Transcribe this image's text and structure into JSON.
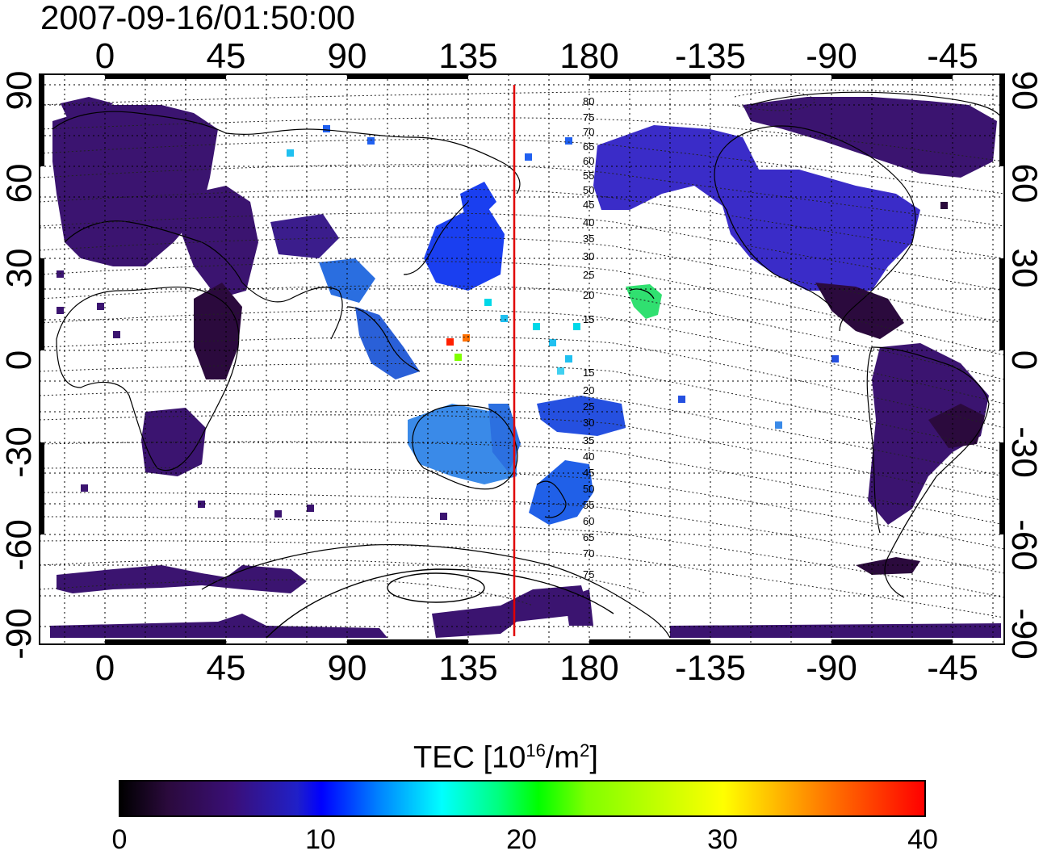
{
  "title": "2007-09-16/01:50:00",
  "axes": {
    "lon_labels": [
      "0",
      "45",
      "90",
      "135",
      "180",
      "-135",
      "-90",
      "-45"
    ],
    "lat_labels": [
      "90",
      "60",
      "30",
      "0",
      "-30",
      "-60",
      "-90"
    ]
  },
  "contour_labels": [
    "80",
    "75",
    "70",
    "65",
    "60",
    "55",
    "50",
    "45",
    "40",
    "35",
    "30",
    "25",
    "20",
    "15",
    "15",
    "20",
    "25",
    "30",
    "35",
    "40",
    "45",
    "50",
    "55",
    "60",
    "65",
    "70",
    "75"
  ],
  "colorbar": {
    "label_main": "TEC  [10",
    "label_sup1": "16",
    "label_mid": "/m",
    "label_sup2": "2",
    "label_end": "]",
    "ticks": [
      "0",
      "10",
      "20",
      "30",
      "40"
    ],
    "range": [
      0,
      40
    ],
    "colors": [
      "#000000",
      "#3a0f78",
      "#0000ff",
      "#00ffff",
      "#00ff00",
      "#ffff00",
      "#ff0000"
    ]
  },
  "marker_line": {
    "longitude": 152,
    "color": "#e00000"
  }
}
